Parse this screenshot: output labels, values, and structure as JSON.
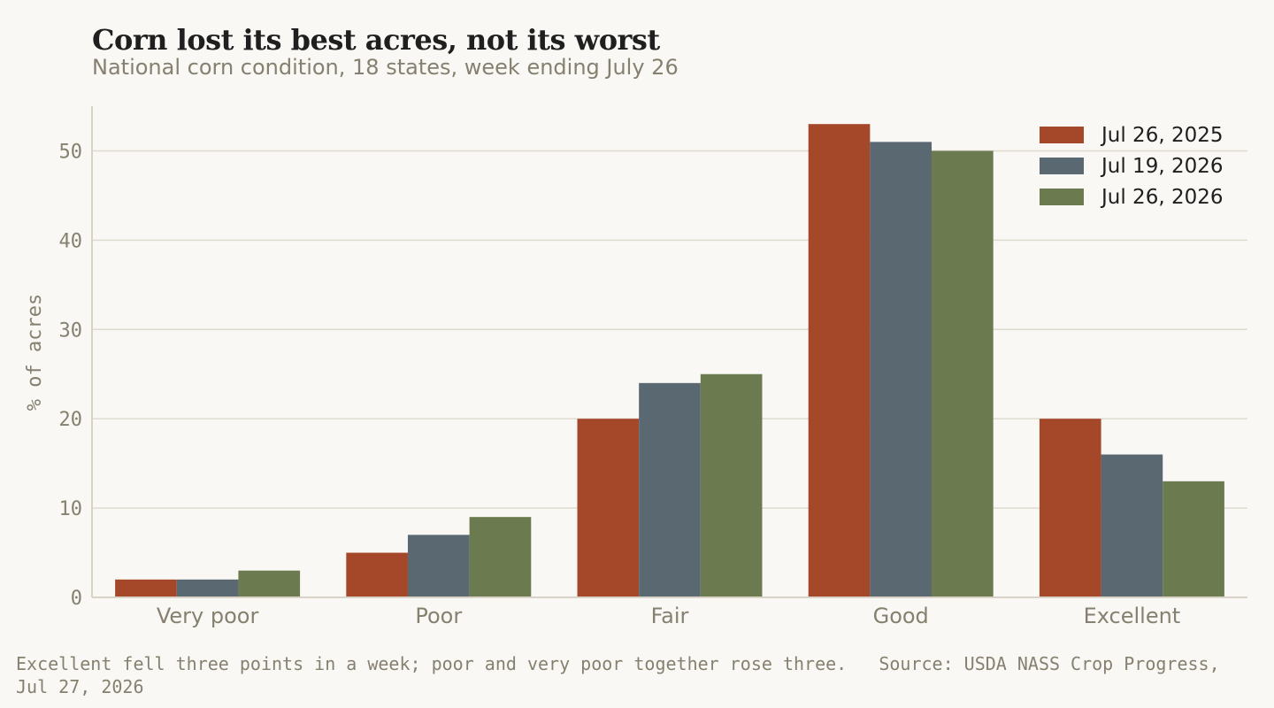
{
  "chart_data": {
    "type": "bar",
    "title": "Corn lost its best acres, not its worst",
    "subtitle": "National corn condition, 18 states, week ending July 26",
    "ylabel": "% of acres",
    "xlabel": "",
    "ylim": [
      0,
      55
    ],
    "yticks": [
      0,
      10,
      20,
      30,
      40,
      50
    ],
    "grid": true,
    "legend_position": "top-right",
    "categories": [
      "Very poor",
      "Poor",
      "Fair",
      "Good",
      "Excellent"
    ],
    "series": [
      {
        "name": "Jul 26, 2025",
        "color": "#a5482a",
        "values": [
          2,
          5,
          20,
          53,
          20
        ]
      },
      {
        "name": "Jul 19, 2026",
        "color": "#5a6872",
        "values": [
          2,
          7,
          24,
          51,
          16
        ]
      },
      {
        "name": "Jul 26, 2026",
        "color": "#6b7b4f",
        "values": [
          3,
          9,
          25,
          50,
          13
        ]
      }
    ]
  },
  "footnote": {
    "text": "Excellent fell three points in a week; poor and very poor together rose three.   Source: USDA NASS Crop Progress, Jul 27, 2026"
  }
}
